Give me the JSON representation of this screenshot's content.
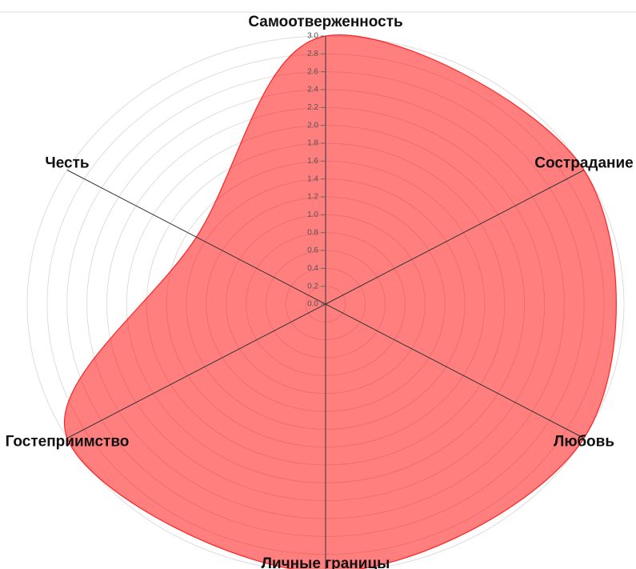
{
  "chart_data": {
    "type": "radar",
    "categories": [
      "Самоотверженность",
      "Сострадание",
      "Любовь",
      "Личные границы",
      "Гостеприимство",
      "Честь"
    ],
    "series": [
      {
        "color": "#ff0000",
        "values": [
          3,
          3,
          3,
          3,
          3,
          1.5
        ]
      }
    ],
    "ylim": [
      0,
      3
    ],
    "yticks": [
      {
        "value": 0,
        "label": "0.0"
      },
      {
        "value": 0.2,
        "label": "0.2"
      },
      {
        "value": 0.4,
        "label": "0.4"
      },
      {
        "value": 0.6,
        "label": "0.6"
      },
      {
        "value": 0.8,
        "label": "0.8"
      },
      {
        "value": 1,
        "label": "1.0"
      },
      {
        "value": 1.2,
        "label": "1.2"
      },
      {
        "value": 1.4,
        "label": "1.4"
      },
      {
        "value": 1.6,
        "label": "1.6"
      },
      {
        "value": 1.8,
        "label": "1.8"
      },
      {
        "value": 2,
        "label": "2.0"
      },
      {
        "value": 2.2,
        "label": "2.2"
      },
      {
        "value": 2.4,
        "label": "2.4"
      },
      {
        "value": 2.6,
        "label": "2.6"
      },
      {
        "value": 2.8,
        "label": "2.8"
      },
      {
        "value": 3,
        "label": "3.0"
      }
    ],
    "grid": true
  }
}
